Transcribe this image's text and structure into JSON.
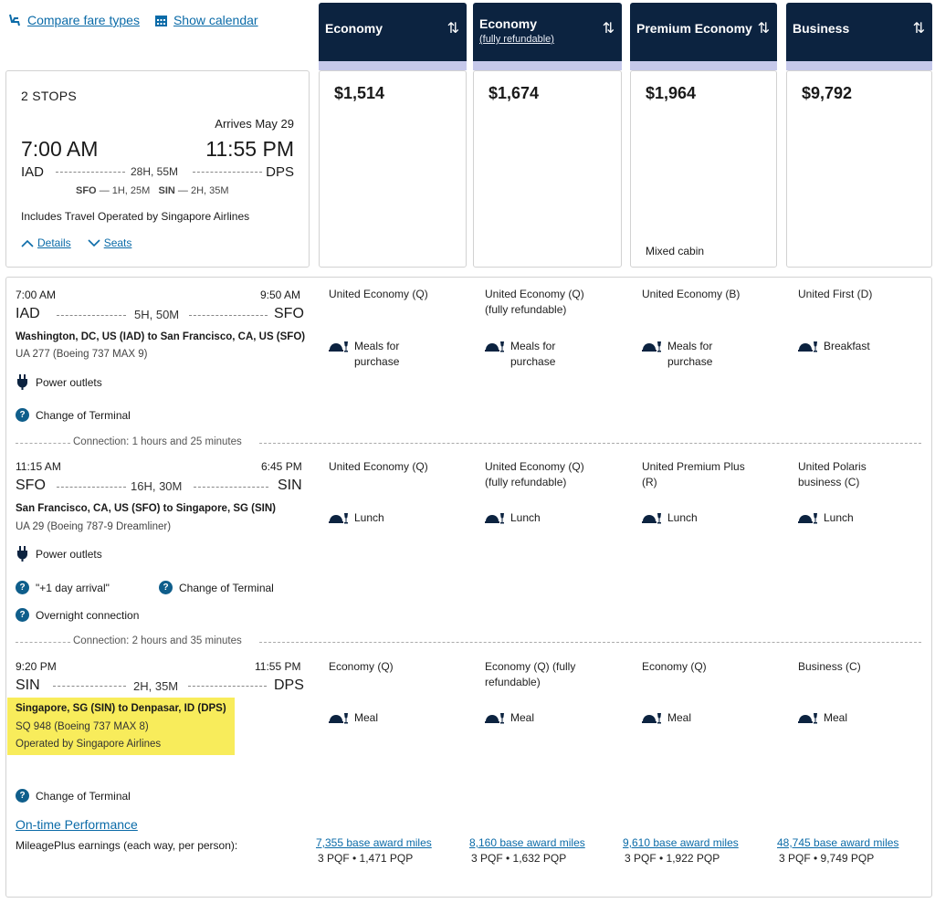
{
  "top_links": {
    "compare": "Compare fare types",
    "calendar": "Show calendar"
  },
  "columns": [
    {
      "title": "Economy",
      "subtitle": "",
      "price": "$1,514",
      "note": ""
    },
    {
      "title": "Economy",
      "subtitle": "(fully refundable)",
      "price": "$1,674",
      "note": ""
    },
    {
      "title": "Premium Economy",
      "subtitle": "",
      "price": "$1,964",
      "note": "Mixed cabin"
    },
    {
      "title": "Business",
      "subtitle": "",
      "price": "$9,792",
      "note": ""
    }
  ],
  "summary": {
    "stops": "2 STOPS",
    "arrives": "Arrives May 29",
    "dep_time": "7:00 AM",
    "arr_time": "11:55 PM",
    "origin": "IAD",
    "destination": "DPS",
    "duration": "28H, 55M",
    "layover1_code": "SFO",
    "layover1_dur": "— 1H, 25M",
    "layover2_code": "SIN",
    "layover2_dur": "— 2H, 35M",
    "operated_note": "Includes Travel Operated by Singapore Airlines",
    "details_link": "Details",
    "seats_link": "Seats"
  },
  "segments": [
    {
      "dep_time": "7:00 AM",
      "arr_time": "9:50 AM",
      "from": "IAD",
      "to": "SFO",
      "duration": "5H, 50M",
      "route": "Washington, DC, US (IAD) to San Francisco, CA, US (SFO)",
      "flight": "UA 277 (Boeing 737 MAX 9)",
      "amenity": "Power outlets",
      "notes": [
        "Change of Terminal"
      ],
      "cabins": [
        "United Economy (Q)",
        "United Economy (Q)\n(fully refundable)",
        "United Economy (B)",
        "United First (D)"
      ],
      "meals": [
        "Meals for\npurchase",
        "Meals for\npurchase",
        "Meals for\npurchase",
        "Breakfast"
      ]
    },
    {
      "dep_time": "11:15 AM",
      "arr_time": "6:45 PM",
      "from": "SFO",
      "to": "SIN",
      "duration": "16H, 30M",
      "route": "San Francisco, CA, US (SFO) to Singapore, SG (SIN)",
      "flight": "UA 29 (Boeing 787-9 Dreamliner)",
      "amenity": "Power outlets",
      "notes": [
        "\"+1 day arrival\"",
        "Change of Terminal",
        "Overnight connection"
      ],
      "cabins": [
        "United Economy (Q)",
        "United Economy (Q)\n(fully refundable)",
        "United Premium Plus\n(R)",
        "United Polaris\nbusiness (C)"
      ],
      "meals": [
        "Lunch",
        "Lunch",
        "Lunch",
        "Lunch"
      ]
    },
    {
      "dep_time": "9:20 PM",
      "arr_time": "11:55 PM",
      "from": "SIN",
      "to": "DPS",
      "duration": "2H, 35M",
      "route": "Singapore, SG (SIN) to Denpasar, ID (DPS)",
      "flight": "SQ 948 (Boeing 737 MAX 8)",
      "operated": "Operated by Singapore Airlines",
      "notes": [
        "Change of Terminal"
      ],
      "cabins": [
        "Economy (Q)",
        "Economy (Q) (fully\nrefundable)",
        "Economy (Q)",
        "Business (C)"
      ],
      "meals": [
        "Meal",
        "Meal",
        "Meal",
        "Meal"
      ]
    }
  ],
  "connections": [
    "Connection: 1 hours and 25 minutes",
    "Connection: 2 hours and 35 minutes"
  ],
  "ontime_link": "On-time Performance",
  "earnings_label": "MileagePlus earnings (each way, per person):",
  "earnings": [
    {
      "miles": "7,355 base award miles",
      "pqf": "3 PQF • 1,471 PQP"
    },
    {
      "miles": "8,160 base award miles",
      "pqf": "3 PQF • 1,632 PQP"
    },
    {
      "miles": "9,610 base award miles",
      "pqf": "3 PQF • 1,922 PQP"
    },
    {
      "miles": "48,745 base award miles",
      "pqf": "3 PQF • 9,749 PQP"
    }
  ],
  "colors": {
    "header_navy": "#0c2340",
    "header_bar": "#c5c8ea",
    "link": "#0b6ba8",
    "info_icon": "#0f5e8b",
    "highlight": "#f8ec5b"
  }
}
